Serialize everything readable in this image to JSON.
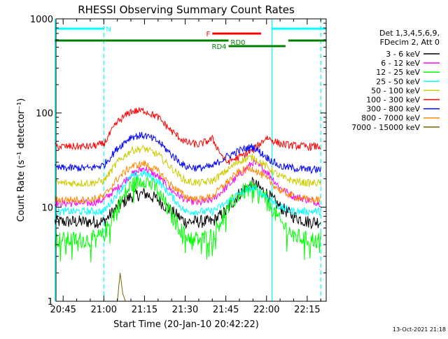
{
  "chart_data": {
    "type": "line",
    "title": "RHESSI Observing Summary Count Rates",
    "xlabel": "Start Time (20-Jan-10 20:42:22)",
    "ylabel": "Count Rate (s⁻¹ detector⁻¹)",
    "y_scale": "log",
    "ylim": [
      1,
      1000
    ],
    "xlim": [
      "20:42:22",
      "22:22:00"
    ],
    "x_ticks": [
      "20:45",
      "21:00",
      "21:15",
      "21:30",
      "21:45",
      "22:00",
      "22:15"
    ],
    "y_ticks": [
      "1",
      "10",
      "100",
      "1000"
    ],
    "legend_position": "right",
    "legend_header": [
      "Det 1,3,4,5,6,9,",
      "FDecim 2, Att 0"
    ],
    "footer_date": "13-Oct-2021 21:18",
    "series": [
      {
        "name": "3 - 6 keV",
        "color": "#000000",
        "x": [
          "20:42",
          "20:55",
          "21:00",
          "21:05",
          "21:10",
          "21:15",
          "21:20",
          "21:25",
          "21:30",
          "21:35",
          "21:40",
          "21:45",
          "21:50",
          "21:55",
          "22:00",
          "22:05",
          "22:10",
          "22:15",
          "22:20"
        ],
        "values": [
          7,
          7,
          7,
          10,
          13,
          14,
          12,
          9,
          7,
          7,
          7,
          9,
          14,
          18,
          14,
          10,
          8,
          7,
          7
        ]
      },
      {
        "name": "6 - 12 keV",
        "color": "#ff00ff",
        "x": [
          "20:42",
          "20:55",
          "21:00",
          "21:05",
          "21:10",
          "21:15",
          "21:20",
          "21:25",
          "21:30",
          "21:35",
          "21:40",
          "21:45",
          "21:50",
          "21:55",
          "22:00",
          "22:05",
          "22:10",
          "22:15",
          "22:20"
        ],
        "values": [
          11,
          11,
          12,
          16,
          22,
          26,
          21,
          15,
          12,
          11,
          12,
          16,
          22,
          30,
          24,
          16,
          13,
          12,
          11
        ]
      },
      {
        "name": "12 - 25 keV",
        "color": "#00ff00",
        "x": [
          "20:42",
          "20:55",
          "21:00",
          "21:05",
          "21:10",
          "21:15",
          "21:20",
          "21:25",
          "21:30",
          "21:35",
          "21:40",
          "21:45",
          "21:50",
          "21:55",
          "22:00",
          "22:05",
          "22:10",
          "22:15",
          "22:20"
        ],
        "values": [
          4.5,
          4.5,
          5,
          10,
          17,
          20,
          15,
          8,
          5,
          4.5,
          5,
          9,
          14,
          16,
          12,
          7,
          5,
          4.5,
          4.5
        ]
      },
      {
        "name": "25 - 50 keV",
        "color": "#00ffff",
        "x": [
          "20:42",
          "20:55",
          "21:00",
          "21:05",
          "21:10",
          "21:15",
          "21:20",
          "21:25",
          "21:30",
          "21:35",
          "21:40",
          "21:45",
          "21:50",
          "21:55",
          "22:00",
          "22:05",
          "22:10",
          "22:15",
          "22:20"
        ],
        "values": [
          9,
          9,
          9,
          14,
          21,
          23,
          19,
          13,
          9,
          9,
          9,
          11,
          14,
          16,
          13,
          10,
          9,
          9,
          9
        ]
      },
      {
        "name": "50 - 100 keV",
        "color": "#cccc00",
        "x": [
          "20:42",
          "20:55",
          "21:00",
          "21:05",
          "21:10",
          "21:15",
          "21:20",
          "21:25",
          "21:30",
          "21:35",
          "21:40",
          "21:45",
          "21:50",
          "21:55",
          "22:00",
          "22:05",
          "22:10",
          "22:15",
          "22:20"
        ],
        "values": [
          18,
          18,
          19,
          30,
          40,
          42,
          36,
          26,
          19,
          18,
          19,
          24,
          31,
          34,
          27,
          21,
          19,
          18,
          18
        ]
      },
      {
        "name": "100 - 300 keV",
        "color": "#ff0000",
        "x": [
          "20:42",
          "20:55",
          "21:00",
          "21:05",
          "21:10",
          "21:15",
          "21:20",
          "21:25",
          "21:30",
          "21:35",
          "21:40",
          "21:45",
          "21:50",
          "21:55",
          "22:00",
          "22:05",
          "22:10",
          "22:15",
          "22:20"
        ],
        "values": [
          44,
          44,
          47,
          80,
          104,
          106,
          90,
          64,
          49,
          46,
          53,
          30,
          34,
          40,
          55,
          47,
          45,
          44,
          44
        ]
      },
      {
        "name": "300 - 800 keV",
        "color": "#0000ff",
        "x": [
          "20:42",
          "20:55",
          "21:00",
          "21:05",
          "21:10",
          "21:15",
          "21:20",
          "21:25",
          "21:30",
          "21:35",
          "21:40",
          "21:45",
          "21:50",
          "21:55",
          "22:00",
          "22:05",
          "22:10",
          "22:15",
          "22:20"
        ],
        "values": [
          26,
          26,
          28,
          42,
          56,
          58,
          50,
          36,
          27,
          26,
          27,
          34,
          40,
          44,
          34,
          27,
          26,
          25,
          25
        ]
      },
      {
        "name": "800 - 7000 keV",
        "color": "#ff8800",
        "x": [
          "20:42",
          "20:55",
          "21:00",
          "21:05",
          "21:10",
          "21:15",
          "21:20",
          "21:25",
          "21:30",
          "21:35",
          "21:40",
          "21:45",
          "21:50",
          "21:55",
          "22:00",
          "22:05",
          "22:10",
          "22:15",
          "22:20"
        ],
        "values": [
          12,
          12,
          13,
          20,
          27,
          29,
          24,
          17,
          13,
          12,
          13,
          18,
          24,
          26,
          20,
          15,
          13,
          12,
          12
        ]
      },
      {
        "name": "7000 - 15000 keV",
        "color": "#806000",
        "x": [
          "21:05",
          "21:06",
          "21:07",
          "21:08"
        ],
        "values": [
          1,
          2,
          1.2,
          1
        ]
      }
    ],
    "annotations": [
      {
        "label": "N",
        "color": "#00ffff",
        "x_start": "20:42",
        "x_end": "21:00"
      },
      {
        "label": "",
        "color": "#00ffff",
        "x_start": "22:02",
        "x_end": "22:22"
      },
      {
        "label": "F",
        "color": "#ff0000",
        "x_start": "21:40",
        "x_end": "21:58"
      },
      {
        "label": "RD0",
        "color": "#008000",
        "x_start": "20:42",
        "x_end": "21:46"
      },
      {
        "label": "RD4",
        "color": "#008000",
        "x_start": "21:46",
        "x_end": "22:07"
      },
      {
        "label": "",
        "color": "#008000",
        "x_start": "22:08",
        "x_end": "22:22"
      }
    ],
    "vertical_markers": [
      {
        "x": "20:42",
        "color": "#00ffff",
        "style": "solid"
      },
      {
        "x": "21:00",
        "color": "#00ffff",
        "style": "dashed"
      },
      {
        "x": "22:02",
        "color": "#00ffff",
        "style": "solid"
      },
      {
        "x": "22:20",
        "color": "#00ffff",
        "style": "dashed"
      }
    ]
  }
}
